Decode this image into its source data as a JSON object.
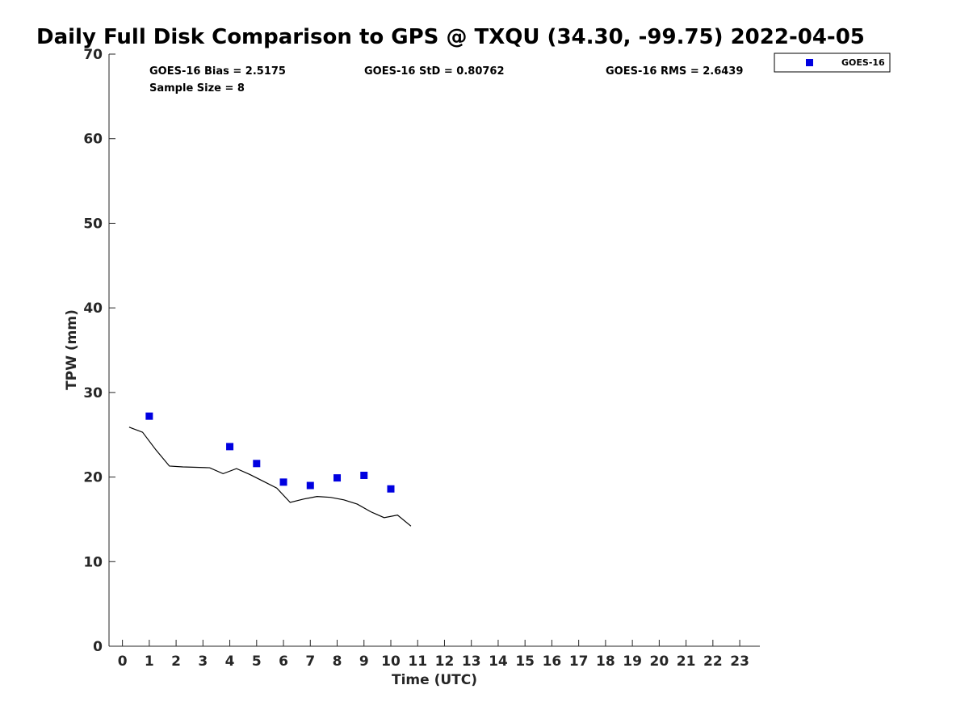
{
  "chart_data": {
    "type": "scatter",
    "title": "Daily Full Disk Comparison to GPS @ TXQU (34.30, -99.75) 2022-04-05",
    "xlabel": "Time (UTC)",
    "ylabel": "TPW (mm)",
    "xlim": [
      -0.5,
      23.75
    ],
    "ylim": [
      0,
      70
    ],
    "x_ticks": [
      0,
      1,
      2,
      3,
      4,
      5,
      6,
      7,
      8,
      9,
      10,
      11,
      12,
      13,
      14,
      15,
      16,
      17,
      18,
      19,
      20,
      21,
      22,
      23
    ],
    "y_ticks": [
      0,
      10,
      20,
      30,
      40,
      50,
      60,
      70
    ],
    "grid": false,
    "legend_placement": "outside-top-right",
    "stats": {
      "bias": "GOES-16 Bias = 2.5175",
      "std": "GOES-16 StD = 0.80762",
      "rms": "GOES-16 RMS = 2.6439",
      "sample_size": "Sample Size = 8"
    },
    "series": [
      {
        "name": "GOES-16",
        "kind": "scatter",
        "marker": "square",
        "color": "#0000e0",
        "x": [
          1,
          4,
          5,
          6,
          7,
          8,
          9,
          10
        ],
        "y": [
          27.2,
          23.6,
          21.6,
          19.4,
          19.0,
          19.9,
          20.2,
          18.6
        ]
      },
      {
        "kind": "line",
        "color": "#000000",
        "x": [
          0.25,
          0.75,
          1.25,
          1.75,
          2.25,
          2.75,
          3.25,
          3.75,
          4.25,
          4.75,
          5.25,
          5.75,
          6.25,
          6.75,
          7.25,
          7.75,
          8.25,
          8.75,
          9.25,
          9.75,
          10.25,
          10.75
        ],
        "y": [
          25.9,
          25.3,
          23.2,
          21.3,
          21.2,
          21.15,
          21.1,
          20.4,
          21.0,
          20.3,
          19.5,
          18.7,
          17.0,
          17.4,
          17.7,
          17.6,
          17.3,
          16.8,
          15.9,
          15.2,
          15.5,
          14.2
        ]
      }
    ]
  }
}
